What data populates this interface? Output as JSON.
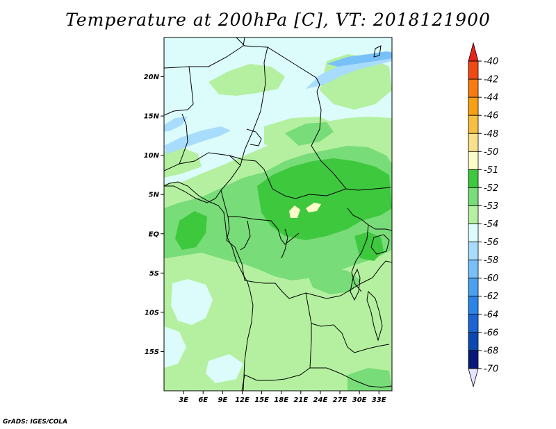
{
  "title": "Temperature at 200hPa [C], VT: 2018121900",
  "footer": "GrADS: IGES/COLA",
  "map": {
    "lat_labels": [
      "20N",
      "15N",
      "10N",
      "5N",
      "EQ",
      "5S",
      "10S",
      "15S"
    ],
    "lat_values": [
      20,
      15,
      10,
      5,
      0,
      -5,
      -10,
      -15
    ],
    "lon_labels": [
      "3E",
      "6E",
      "9E",
      "12E",
      "15E",
      "18E",
      "21E",
      "24E",
      "27E",
      "30E",
      "33E"
    ],
    "lon_values": [
      3,
      6,
      9,
      12,
      15,
      18,
      21,
      24,
      27,
      30,
      33
    ],
    "lon_range": [
      0,
      35
    ],
    "lat_range": [
      -20,
      25
    ]
  },
  "colorbar": {
    "labels": [
      "-40",
      "-42",
      "-44",
      "-46",
      "-48",
      "-50",
      "-51",
      "-52",
      "-53",
      "-54",
      "-56",
      "-58",
      "-60",
      "-62",
      "-64",
      "-66",
      "-68",
      "-70"
    ],
    "colors": [
      "#e8221c",
      "#f04a14",
      "#f87a10",
      "#f8a014",
      "#f8c040",
      "#f8e08c",
      "#fcfcc8",
      "#3ec83e",
      "#78dc78",
      "#b4f0a0",
      "#dcfcfc",
      "#a8dcfc",
      "#78c0f8",
      "#4ca0f0",
      "#2c84e8",
      "#1c64d4",
      "#0c48b0",
      "#081878",
      "#e4e4fc"
    ]
  },
  "field_colors": {
    "lt54": "#dcfcfc",
    "c54": "#b4f0a0",
    "c53": "#78dc78",
    "c52": "#3ec83e",
    "c51": "#fcfcc8",
    "c56": "#a8dcfc",
    "c58": "#78c0f8"
  }
}
